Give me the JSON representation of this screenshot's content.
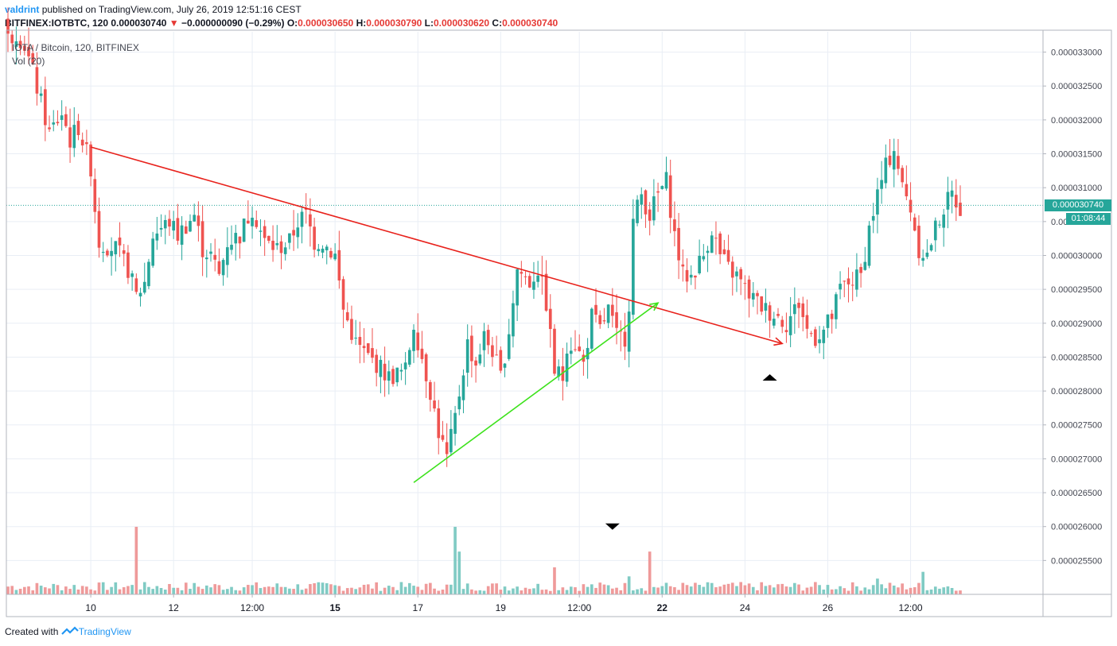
{
  "header": {
    "author": "valdrint",
    "published": "published on TradingView.com, July 26, 2019 12:51:16 CEST",
    "symbol": "BITFINEX:IOTBTC, 120",
    "last": "0.000030740",
    "change_arrow": "▼",
    "change": "−0.000000090 (−0.29%)",
    "o_label": "O:",
    "o": "0.000030650",
    "h_label": "H:",
    "h": "0.000030790",
    "l_label": "L:",
    "l": "0.000030620",
    "c_label": "C:",
    "c": "0.000030740"
  },
  "overlay": {
    "series": "IOTA / Bitcoin, 120, BITFINEX",
    "vol": "Vol (20)"
  },
  "footer": {
    "created": "Created with",
    "brand": "TradingView"
  },
  "price_labels": {
    "last": "0.000030740",
    "countdown": "01:08:44"
  },
  "colors": {
    "up": "#26a69a",
    "down": "#ef5350",
    "up_vol": "#80cbc4",
    "down_vol": "#ef9a9a",
    "red_line": "#e8221c",
    "green_line": "#3de21c",
    "grid": "#e9eef5",
    "last_line": "#26a69a"
  },
  "chart_data": {
    "type": "candlestick",
    "title": "IOTA / Bitcoin, 120, BITFINEX",
    "ylim": [
      2.5e-05,
      3.33e-05
    ],
    "y_ticks": [
      "0.000033000",
      "0.000032500",
      "0.000032000",
      "0.000031500",
      "0.000031000",
      "0.000030500",
      "0.000030000",
      "0.000029500",
      "0.000029000",
      "0.000028500",
      "0.000028000",
      "0.000027500",
      "0.000027000",
      "0.000026500",
      "0.000026000",
      "0.000025500"
    ],
    "y_tick_values": [
      3.3e-05,
      3.25e-05,
      3.2e-05,
      3.15e-05,
      3.1e-05,
      3.05e-05,
      3e-05,
      2.95e-05,
      2.9e-05,
      2.85e-05,
      2.8e-05,
      2.75e-05,
      2.7e-05,
      2.65e-05,
      2.6e-05,
      2.55e-05
    ],
    "x_ticks": [
      "10",
      "12",
      "12:00",
      "15",
      "17",
      "19",
      "12:00",
      "22",
      "24",
      "26",
      "12:00"
    ],
    "x_tick_bold": [
      false,
      false,
      false,
      true,
      false,
      false,
      false,
      true,
      false,
      false,
      false
    ],
    "x_tick_index": [
      20,
      40,
      59,
      79,
      99,
      119,
      138,
      158,
      178,
      198,
      218
    ],
    "num_bars": 231,
    "vol_max": 60,
    "anchors": [
      [
        0,
        3.32e-05
      ],
      [
        2,
        3.33e-05
      ],
      [
        4,
        3.31e-05
      ],
      [
        6,
        3.27e-05
      ],
      [
        10,
        3.18e-05
      ],
      [
        13,
        3.21e-05
      ],
      [
        15,
        3.17e-05
      ],
      [
        17,
        3.19e-05
      ],
      [
        19,
        3.15e-05
      ],
      [
        20,
        3.13e-05
      ],
      [
        21,
        3.07e-05
      ],
      [
        22,
        3.02e-05
      ],
      [
        26,
        3.01e-05
      ],
      [
        29,
        2.98e-05
      ],
      [
        31,
        2.94e-05
      ],
      [
        33,
        2.96e-05
      ],
      [
        35,
        3.03e-05
      ],
      [
        39,
        3.05e-05
      ],
      [
        41,
        3.03e-05
      ],
      [
        45,
        3.06e-05
      ],
      [
        47,
        3.01e-05
      ],
      [
        49,
        3e-05
      ],
      [
        51,
        2.97e-05
      ],
      [
        53,
        3.02e-05
      ],
      [
        56,
        3.03e-05
      ],
      [
        59,
        3.07e-05
      ],
      [
        62,
        3.02e-05
      ],
      [
        65,
        3.01e-05
      ],
      [
        68,
        3.02e-05
      ],
      [
        70,
        3.05e-05
      ],
      [
        72,
        3.06e-05
      ],
      [
        74,
        3.02e-05
      ],
      [
        76,
        3.02e-05
      ],
      [
        79,
        3e-05
      ],
      [
        81,
        2.92e-05
      ],
      [
        84,
        2.87e-05
      ],
      [
        87,
        2.85e-05
      ],
      [
        89,
        2.84e-05
      ],
      [
        92,
        2.82e-05
      ],
      [
        96,
        2.83e-05
      ],
      [
        98,
        2.9e-05
      ],
      [
        100,
        2.85e-05
      ],
      [
        102,
        2.8e-05
      ],
      [
        104,
        2.74e-05
      ],
      [
        106,
        2.7e-05
      ],
      [
        108,
        2.76e-05
      ],
      [
        111,
        2.87e-05
      ],
      [
        113,
        2.84e-05
      ],
      [
        115,
        2.88e-05
      ],
      [
        117,
        2.86e-05
      ],
      [
        119,
        2.82e-05
      ],
      [
        121,
        2.89e-05
      ],
      [
        123,
        2.98e-05
      ],
      [
        126,
        2.96e-05
      ],
      [
        128,
        2.98e-05
      ],
      [
        130,
        2.93e-05
      ],
      [
        132,
        2.83e-05
      ],
      [
        134,
        2.82e-05
      ],
      [
        135,
        2.87e-05
      ],
      [
        137,
        2.87e-05
      ],
      [
        139,
        2.84e-05
      ],
      [
        141,
        2.91e-05
      ],
      [
        143,
        2.89e-05
      ],
      [
        145,
        2.92e-05
      ],
      [
        147,
        2.88e-05
      ],
      [
        149,
        2.88e-05
      ],
      [
        150,
        2.93e-05
      ],
      [
        151,
        3.05e-05
      ],
      [
        153,
        3.09e-05
      ],
      [
        155,
        3.06e-05
      ],
      [
        157,
        3.09e-05
      ],
      [
        159,
        3.11e-05
      ],
      [
        161,
        3.03e-05
      ],
      [
        163,
        2.97e-05
      ],
      [
        165,
        2.97e-05
      ],
      [
        168,
        3e-05
      ],
      [
        170,
        3.04e-05
      ],
      [
        172,
        3e-05
      ],
      [
        174,
        2.98e-05
      ],
      [
        176,
        2.97e-05
      ],
      [
        178,
        2.95e-05
      ],
      [
        181,
        2.93e-05
      ],
      [
        183,
        2.92e-05
      ],
      [
        186,
        2.91e-05
      ],
      [
        188,
        2.9e-05
      ],
      [
        191,
        2.93e-05
      ],
      [
        193,
        2.89e-05
      ],
      [
        195,
        2.88e-05
      ],
      [
        197,
        2.89e-05
      ],
      [
        199,
        2.91e-05
      ],
      [
        201,
        2.95e-05
      ],
      [
        203,
        2.96e-05
      ],
      [
        206,
        2.97e-05
      ],
      [
        208,
        3.04e-05
      ],
      [
        210,
        3.09e-05
      ],
      [
        212,
        3.13e-05
      ],
      [
        214,
        3.16e-05
      ],
      [
        216,
        3.1e-05
      ],
      [
        218,
        3.07e-05
      ],
      [
        220,
        3.01e-05
      ],
      [
        222,
        3e-05
      ],
      [
        224,
        3.04e-05
      ],
      [
        226,
        3.07e-05
      ],
      [
        228,
        3.09e-05
      ],
      [
        230,
        3.07e-05
      ]
    ],
    "volume_spikes": [
      [
        31,
        60
      ],
      [
        108,
        60
      ],
      [
        109,
        38
      ],
      [
        155,
        38
      ],
      [
        132,
        24
      ],
      [
        150,
        16
      ],
      [
        221,
        20
      ],
      [
        210,
        14
      ]
    ],
    "trendlines": [
      {
        "color": "red",
        "from": [
          20,
          3.16e-05
        ],
        "to": [
          187,
          2.87e-05
        ],
        "arrow": true
      },
      {
        "color": "green",
        "from": [
          98,
          2.665e-05
        ],
        "to": [
          157,
          2.93e-05
        ],
        "arrow": true
      }
    ],
    "markers": [
      {
        "shape": "triangle-down",
        "bar": 146,
        "price": 2.6e-05
      },
      {
        "shape": "triangle-up",
        "bar": 184,
        "price": 2.82e-05
      }
    ],
    "last_price": 3.074e-05
  }
}
